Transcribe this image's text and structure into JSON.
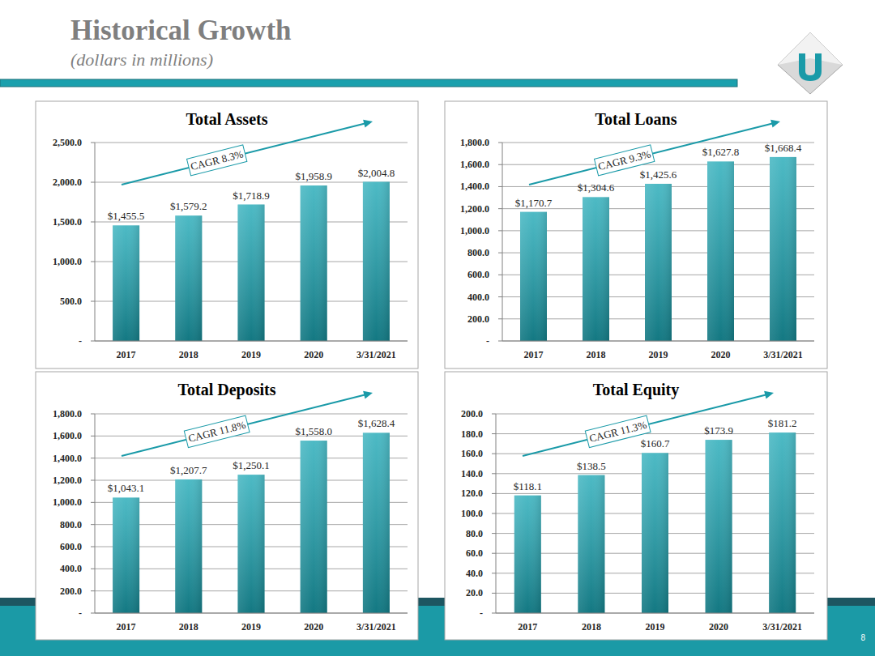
{
  "page": {
    "title": "Historical Growth",
    "subtitle": "(dollars in millions)",
    "page_number": 8
  },
  "chart_data": [
    {
      "type": "bar",
      "title": "Total Assets",
      "categories": [
        "2017",
        "2018",
        "2019",
        "2020",
        "3/31/2021"
      ],
      "values": [
        1455.5,
        1579.2,
        1718.9,
        1958.9,
        2004.8
      ],
      "value_labels": [
        "$1,455.5",
        "$1,579.2",
        "$1,718.9",
        "$1,958.9",
        "$2,004.8"
      ],
      "data_labels": true,
      "color": "#1aa6b4",
      "grid": true,
      "ylim": [
        0,
        2500
      ],
      "yticks": [
        {
          "value": 0,
          "label": "-"
        },
        {
          "value": 500,
          "label": "500.0"
        },
        {
          "value": 1000,
          "label": "1,000.0"
        },
        {
          "value": 1500,
          "label": "1,500.0"
        },
        {
          "value": 2000,
          "label": "2,000.0"
        },
        {
          "value": 2500,
          "label": "2,500.0"
        }
      ],
      "annotations": [
        "CAGR 8.3%"
      ]
    },
    {
      "type": "bar",
      "title": "Total Loans",
      "categories": [
        "2017",
        "2018",
        "2019",
        "2020",
        "3/31/2021"
      ],
      "values": [
        1170.7,
        1304.6,
        1425.6,
        1627.8,
        1668.4
      ],
      "value_labels": [
        "$1,170.7",
        "$1,304.6",
        "$1,425.6",
        "$1,627.8",
        "$1,668.4"
      ],
      "data_labels": true,
      "color": "#1aa6b4",
      "grid": true,
      "ylim": [
        0,
        1800
      ],
      "yticks": [
        {
          "value": 0,
          "label": "-"
        },
        {
          "value": 200,
          "label": "200.0"
        },
        {
          "value": 400,
          "label": "400.0"
        },
        {
          "value": 600,
          "label": "600.0"
        },
        {
          "value": 800,
          "label": "800.0"
        },
        {
          "value": 1000,
          "label": "1,000.0"
        },
        {
          "value": 1200,
          "label": "1,200.0"
        },
        {
          "value": 1400,
          "label": "1,400.0"
        },
        {
          "value": 1600,
          "label": "1,600.0"
        },
        {
          "value": 1800,
          "label": "1,800.0"
        }
      ],
      "annotations": [
        "CAGR 9.3%"
      ]
    },
    {
      "type": "bar",
      "title": "Total Deposits",
      "categories": [
        "2017",
        "2018",
        "2019",
        "2020",
        "3/31/2021"
      ],
      "values": [
        1043.1,
        1207.7,
        1250.1,
        1558.0,
        1628.4
      ],
      "value_labels": [
        "$1,043.1",
        "$1,207.7",
        "$1,250.1",
        "$1,558.0",
        "$1,628.4"
      ],
      "data_labels": true,
      "color": "#1aa6b4",
      "grid": true,
      "ylim": [
        0,
        1800
      ],
      "yticks": [
        {
          "value": 0,
          "label": "-"
        },
        {
          "value": 200,
          "label": "200.0"
        },
        {
          "value": 400,
          "label": "400.0"
        },
        {
          "value": 600,
          "label": "600.0"
        },
        {
          "value": 800,
          "label": "800.0"
        },
        {
          "value": 1000,
          "label": "1,000.0"
        },
        {
          "value": 1200,
          "label": "1,200.0"
        },
        {
          "value": 1400,
          "label": "1,400.0"
        },
        {
          "value": 1600,
          "label": "1,600.0"
        },
        {
          "value": 1800,
          "label": "1,800.0"
        }
      ],
      "annotations": [
        "CAGR 11.8%"
      ]
    },
    {
      "type": "bar",
      "title": "Total Equity",
      "categories": [
        "2017",
        "2018",
        "2019",
        "2020",
        "3/31/2021"
      ],
      "values": [
        118.1,
        138.5,
        160.7,
        173.9,
        181.2
      ],
      "value_labels": [
        "$118.1",
        "$138.5",
        "$160.7",
        "$173.9",
        "$181.2"
      ],
      "data_labels": true,
      "color": "#1aa6b4",
      "grid": true,
      "ylim": [
        0,
        200
      ],
      "yticks": [
        {
          "value": 0,
          "label": "-"
        },
        {
          "value": 20,
          "label": "20.0"
        },
        {
          "value": 40,
          "label": "40.0"
        },
        {
          "value": 60,
          "label": "60.0"
        },
        {
          "value": 80,
          "label": "80.0"
        },
        {
          "value": 100,
          "label": "100.0"
        },
        {
          "value": 120,
          "label": "120.0"
        },
        {
          "value": 140,
          "label": "140.0"
        },
        {
          "value": 160,
          "label": "160.0"
        },
        {
          "value": 180,
          "label": "180.0"
        },
        {
          "value": 200,
          "label": "200.0"
        }
      ],
      "annotations": [
        "CAGR 11.3%"
      ]
    }
  ]
}
